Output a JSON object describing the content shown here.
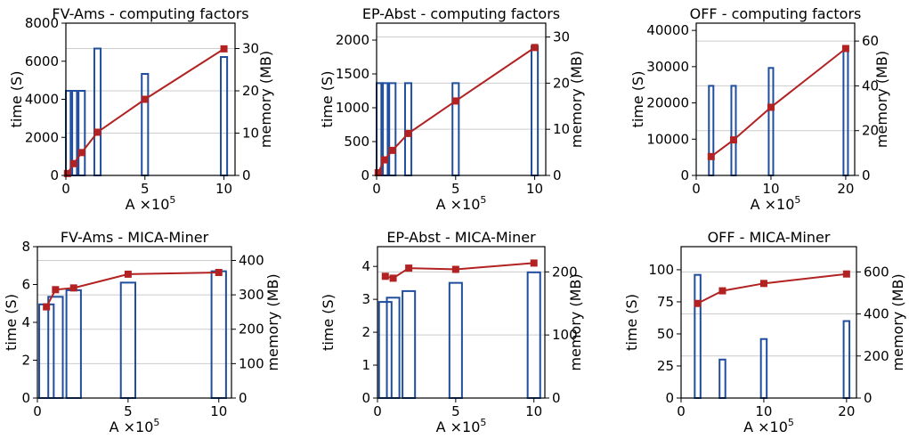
{
  "chart_data": [
    {
      "type": "bar+line",
      "title": "FV-Ams - computing factors",
      "xlabel": "A ×10",
      "xlabel_sup": "5",
      "ylabel": "time (S)",
      "y2label": "memory (MB)",
      "xlim": [
        0,
        10.7
      ],
      "xticks": [
        0,
        5,
        10
      ],
      "ylim": [
        0,
        8000
      ],
      "yticks": [
        0,
        2000,
        4000,
        6000,
        8000
      ],
      "y2lim": [
        0,
        36
      ],
      "y2ticks": [
        0,
        10,
        20,
        30
      ],
      "grid": "y-right",
      "bar_width": 0.4,
      "bars_axis": "right",
      "line_axis": "left",
      "bars": {
        "x": [
          0.2,
          0.5,
          1,
          2,
          5,
          10
        ],
        "values": [
          20,
          20,
          20,
          30,
          24,
          28
        ]
      },
      "line": {
        "x": [
          0.1,
          0.5,
          1,
          2,
          5,
          10
        ],
        "values": [
          100,
          620,
          1200,
          2270,
          4000,
          6650
        ]
      }
    },
    {
      "type": "bar+line",
      "title": "EP-Abst - computing factors",
      "xlabel": "A ×10",
      "xlabel_sup": "5",
      "ylabel": "time (S)",
      "y2label": "memory (MB)",
      "xlim": [
        0,
        10.7
      ],
      "xticks": [
        0,
        5,
        10
      ],
      "ylim": [
        0,
        2250
      ],
      "yticks": [
        0,
        500,
        1000,
        1500,
        2000
      ],
      "y2lim": [
        0,
        33
      ],
      "y2ticks": [
        0,
        10,
        20,
        30
      ],
      "grid": "y-right",
      "bar_width": 0.4,
      "bars_axis": "right",
      "line_axis": "left",
      "bars": {
        "x": [
          0.2,
          0.5,
          1,
          2,
          5,
          10
        ],
        "values": [
          20,
          20,
          20,
          20,
          20,
          28
        ]
      },
      "line": {
        "x": [
          0.1,
          0.5,
          1,
          2,
          5,
          10
        ],
        "values": [
          40,
          230,
          370,
          620,
          1100,
          1890
        ]
      }
    },
    {
      "type": "bar+line",
      "title": "OFF - computing factors",
      "xlabel": "A ×10",
      "xlabel_sup": "5",
      "ylabel": "time (S)",
      "y2label": "memory (MB)",
      "xlim": [
        0,
        21.2
      ],
      "xticks": [
        0,
        10,
        20
      ],
      "ylim": [
        0,
        42000
      ],
      "yticks": [
        0,
        10000,
        20000,
        30000,
        40000
      ],
      "y2lim": [
        0,
        68
      ],
      "y2ticks": [
        0,
        20,
        40,
        60
      ],
      "grid": "y-right",
      "bar_width": 0.6,
      "bars_axis": "right",
      "line_axis": "left",
      "bars": {
        "x": [
          2,
          5,
          10,
          20
        ],
        "values": [
          40,
          40,
          48,
          57
        ]
      },
      "line": {
        "x": [
          2,
          5,
          10,
          20
        ],
        "values": [
          5200,
          9800,
          18800,
          35000
        ]
      }
    },
    {
      "type": "bar+line",
      "title": "FV-Ams - MICA-Miner",
      "xlabel": "A ×10",
      "xlabel_sup": "5",
      "ylabel": "time (S)",
      "y2label": "memory (MB)",
      "xlim": [
        0,
        10.7
      ],
      "xticks": [
        0,
        5,
        10
      ],
      "ylim": [
        0,
        8
      ],
      "yticks": [
        0,
        2,
        4,
        6,
        8
      ],
      "y2lim": [
        0,
        440
      ],
      "y2ticks": [
        0,
        100,
        200,
        300,
        400
      ],
      "grid": "y-right",
      "bar_width": 0.8,
      "bars_axis": "left",
      "line_axis": "right",
      "bars": {
        "x": [
          0.5,
          1,
          2,
          5,
          10
        ],
        "values": [
          4.95,
          5.35,
          5.7,
          6.1,
          6.7
        ]
      },
      "line": {
        "x": [
          0.5,
          1,
          2,
          5,
          10
        ],
        "values": [
          265,
          315,
          320,
          360,
          365
        ]
      }
    },
    {
      "type": "bar+line",
      "title": "EP-Abst - MICA-Miner",
      "xlabel": "A ×10",
      "xlabel_sup": "5",
      "ylabel": "time (S)",
      "y2label": "memory (MB)",
      "xlim": [
        0,
        10.7
      ],
      "xticks": [
        0,
        5,
        10
      ],
      "ylim": [
        0,
        4.6
      ],
      "yticks": [
        0,
        1,
        2,
        3,
        4
      ],
      "y2lim": [
        0,
        240
      ],
      "y2ticks": [
        0,
        100,
        200
      ],
      "grid": "y-right",
      "bar_width": 0.8,
      "bars_axis": "left",
      "line_axis": "right",
      "bars": {
        "x": [
          0.5,
          1,
          2,
          5,
          10
        ],
        "values": [
          2.92,
          3.05,
          3.25,
          3.5,
          3.82
        ]
      },
      "line": {
        "x": [
          0.5,
          1,
          2,
          5,
          10
        ],
        "values": [
          193,
          190,
          206,
          204,
          214
        ]
      }
    },
    {
      "type": "bar+line",
      "title": "OFF - MICA-Miner",
      "xlabel": "A ×10",
      "xlabel_sup": "5",
      "ylabel": "time (S)",
      "y2label": "memory (MB)",
      "xlim": [
        0,
        21.2
      ],
      "xticks": [
        0,
        10,
        20
      ],
      "ylim": [
        0,
        118
      ],
      "yticks": [
        0,
        25,
        50,
        75,
        100
      ],
      "y2lim": [
        0,
        720
      ],
      "y2ticks": [
        0,
        200,
        400,
        600
      ],
      "grid": "y-right",
      "bar_width": 0.7,
      "bars_axis": "left",
      "line_axis": "right",
      "bars": {
        "x": [
          2,
          5,
          10,
          20
        ],
        "values": [
          96,
          30,
          46,
          60
        ]
      },
      "line": {
        "x": [
          2,
          5,
          10,
          20
        ],
        "values": [
          450,
          510,
          545,
          590
        ]
      }
    }
  ],
  "style": {
    "bar_color": "#1f4e9e",
    "line_color": "#b22222",
    "marker_color": "#b22222",
    "grid_color": "#cccccc",
    "axis_color": "#000000"
  }
}
